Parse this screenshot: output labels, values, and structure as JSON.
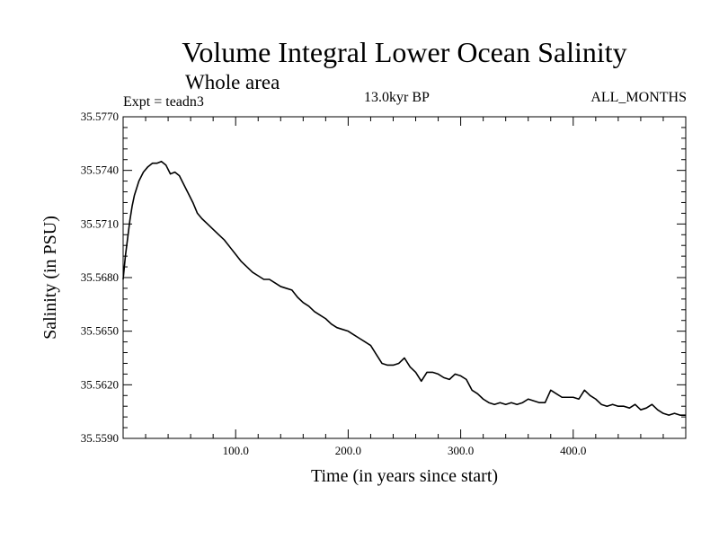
{
  "header": {
    "title": "Volume Integral Lower Ocean Salinity",
    "subtitle": "Whole area",
    "experiment": "Expt = teadn3",
    "period": "13.0kyr BP",
    "months": "ALL_MONTHS"
  },
  "chart_data": {
    "type": "line",
    "title": "Volume Integral Lower Ocean Salinity",
    "subtitle": "Whole area",
    "xlabel": "Time (in years since start)",
    "ylabel": "Salinity (in PSU)",
    "xlim": [
      0,
      500
    ],
    "ylim": [
      35.559,
      35.577
    ],
    "xticks": [
      100,
      200,
      300,
      400
    ],
    "xtick_labels": [
      "100.0",
      "200.0",
      "300.0",
      "400.0"
    ],
    "yticks": [
      35.559,
      35.562,
      35.565,
      35.568,
      35.571,
      35.574,
      35.577
    ],
    "ytick_labels": [
      "35.5590",
      "35.5620",
      "35.5650",
      "35.5680",
      "35.5710",
      "35.5740",
      "35.5770"
    ],
    "grid": false,
    "series": [
      {
        "name": "Salinity",
        "color": "#000000",
        "x": [
          0,
          2,
          4,
          6,
          8,
          10,
          14,
          18,
          22,
          26,
          30,
          34,
          38,
          42,
          46,
          50,
          54,
          58,
          62,
          66,
          70,
          75,
          80,
          85,
          90,
          95,
          100,
          105,
          110,
          115,
          120,
          125,
          130,
          135,
          140,
          145,
          150,
          155,
          160,
          165,
          170,
          175,
          180,
          185,
          190,
          195,
          200,
          205,
          210,
          215,
          220,
          225,
          230,
          235,
          240,
          245,
          250,
          255,
          260,
          265,
          270,
          275,
          280,
          285,
          290,
          295,
          300,
          305,
          310,
          315,
          320,
          325,
          330,
          335,
          340,
          345,
          350,
          355,
          360,
          365,
          370,
          375,
          380,
          385,
          390,
          395,
          400,
          405,
          410,
          415,
          420,
          425,
          430,
          435,
          440,
          445,
          450,
          455,
          460,
          465,
          470,
          475,
          480,
          485,
          490,
          495,
          500
        ],
        "values": [
          35.5679,
          35.5692,
          35.5702,
          35.5712,
          35.572,
          35.5726,
          35.5734,
          35.5739,
          35.5742,
          35.5744,
          35.5744,
          35.5745,
          35.5743,
          35.5738,
          35.5739,
          35.5737,
          35.5732,
          35.5727,
          35.5722,
          35.5716,
          35.5713,
          35.571,
          35.5707,
          35.5704,
          35.5701,
          35.5697,
          35.5693,
          35.5689,
          35.5686,
          35.5683,
          35.5681,
          35.5679,
          35.5679,
          35.5677,
          35.5675,
          35.5674,
          35.5673,
          35.5669,
          35.5666,
          35.5664,
          35.5661,
          35.5659,
          35.5657,
          35.5654,
          35.5652,
          35.5651,
          35.565,
          35.5648,
          35.5646,
          35.5644,
          35.5642,
          35.5637,
          35.5632,
          35.5631,
          35.5631,
          35.5632,
          35.5635,
          35.563,
          35.5627,
          35.5622,
          35.5627,
          35.5627,
          35.5626,
          35.5624,
          35.5623,
          35.5626,
          35.5625,
          35.5623,
          35.5617,
          35.5615,
          35.5612,
          35.561,
          35.5609,
          35.561,
          35.5609,
          35.561,
          35.5609,
          35.561,
          35.5612,
          35.5611,
          35.561,
          35.561,
          35.5617,
          35.5615,
          35.5613,
          35.5613,
          35.5613,
          35.5612,
          35.5617,
          35.5614,
          35.5612,
          35.5609,
          35.5608,
          35.5609,
          35.5608,
          35.5608,
          35.5607,
          35.5609,
          35.5606,
          35.5607,
          35.5609,
          35.5606,
          35.5604,
          35.5603,
          35.5604,
          35.5603,
          35.5603
        ]
      }
    ]
  }
}
